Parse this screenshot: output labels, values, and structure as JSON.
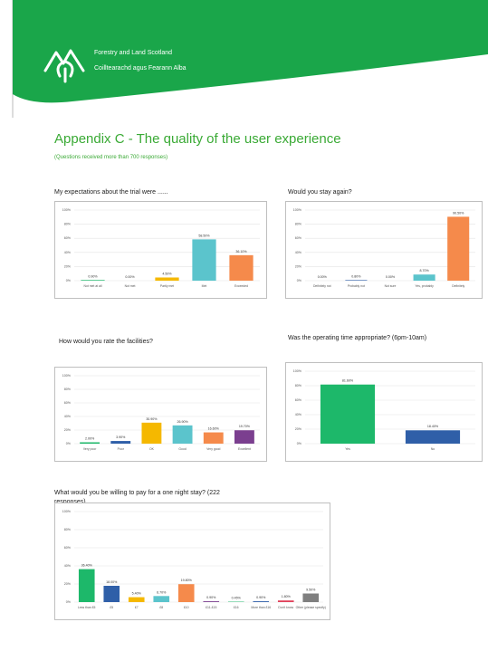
{
  "header": {
    "org_en": "Forestry and Land Scotland",
    "org_gd": "Coilltearachd agus Fearann Alba"
  },
  "title": "Appendix C - The quality of the user experience",
  "subtitle": "(Questions received more than 700 responses)",
  "chart_data": [
    {
      "type": "bar",
      "title": "My expectations about the trial were ......",
      "categories": [
        "Not met at all",
        "Not met",
        "Partly met",
        "Met",
        "Exceeded"
      ],
      "values": [
        0.9,
        0,
        4.5,
        58.5,
        36.1
      ],
      "value_labels": [
        "0.90%",
        "0.00%",
        "4.50%",
        "58.50%",
        "36.10%"
      ],
      "colors": [
        "#1db86a",
        "#2f5fa8",
        "#f5b800",
        "#5bc4cc",
        "#f58a4b"
      ],
      "ylim": [
        0,
        100
      ],
      "yticks": [
        {
          "value": 0,
          "label": "0%"
        },
        {
          "value": 20,
          "label": "20%"
        },
        {
          "value": 40,
          "label": "40%"
        },
        {
          "value": 60,
          "label": "60%"
        },
        {
          "value": 80,
          "label": "80%"
        },
        {
          "value": 100,
          "label": "100%"
        }
      ],
      "grid": true
    },
    {
      "type": "bar",
      "title": "Would you stay again?",
      "categories": [
        "Definitely not",
        "Probably not",
        "Not sure",
        "Yes, probably",
        "Definitely"
      ],
      "values": [
        0,
        0.8,
        0,
        8.7,
        90.5
      ],
      "value_labels": [
        "0.00%",
        "0.80%",
        "0.00%",
        "8.70%",
        "90.50%"
      ],
      "colors": [
        "#1db86a",
        "#2f5fa8",
        "#f5b800",
        "#5bc4cc",
        "#f58a4b"
      ],
      "ylim": [
        0,
        100
      ],
      "yticks": [
        {
          "value": 0,
          "label": "0%"
        },
        {
          "value": 20,
          "label": "20%"
        },
        {
          "value": 40,
          "label": "40%"
        },
        {
          "value": 60,
          "label": "60%"
        },
        {
          "value": 80,
          "label": "80%"
        },
        {
          "value": 100,
          "label": "100%"
        }
      ],
      "grid": true
    },
    {
      "type": "bar",
      "title": "How would you rate the facilities?",
      "categories": [
        "Very poor",
        "Poor",
        "OK",
        "Good",
        "Very good",
        "Excellent"
      ],
      "values": [
        2,
        3.9,
        30.9,
        26.9,
        16.6,
        19.7
      ],
      "value_labels": [
        "2.00%",
        "3.90%",
        "30.90%",
        "26.90%",
        "16.60%",
        "19.70%"
      ],
      "colors": [
        "#1db86a",
        "#2f5fa8",
        "#f5b800",
        "#5bc4cc",
        "#f58a4b",
        "#7b3f8f"
      ],
      "ylim": [
        0,
        100
      ],
      "yticks": [
        {
          "value": 0,
          "label": "0%"
        },
        {
          "value": 20,
          "label": "20%"
        },
        {
          "value": 40,
          "label": "40%"
        },
        {
          "value": 60,
          "label": "60%"
        },
        {
          "value": 80,
          "label": "80%"
        },
        {
          "value": 100,
          "label": "100%"
        }
      ],
      "grid": true
    },
    {
      "type": "bar",
      "title": "Was the operating time appropriate? (6pm-10am)",
      "categories": [
        "Yes",
        "No"
      ],
      "values": [
        81.6,
        18.4
      ],
      "value_labels": [
        "81.60%",
        "18.40%"
      ],
      "colors": [
        "#1db86a",
        "#2f5fa8"
      ],
      "ylim": [
        0,
        100
      ],
      "yticks": [
        {
          "value": 0,
          "label": "0%"
        },
        {
          "value": 20,
          "label": "20%"
        },
        {
          "value": 40,
          "label": "40%"
        },
        {
          "value": 60,
          "label": "60%"
        },
        {
          "value": 80,
          "label": "80%"
        },
        {
          "value": 100,
          "label": "100%"
        }
      ],
      "grid": true
    },
    {
      "type": "bar",
      "title": "What would you be willing to pay for a one night stay? (222 responses)",
      "categories": [
        "Less than £5",
        "£5",
        "£7",
        "£8",
        "£10",
        "£11-£15",
        "£16",
        "More than £16",
        "Don't know",
        "Other (please specify)"
      ],
      "values": [
        36.4,
        18,
        5.4,
        6.7,
        19.8,
        0.9,
        0.45,
        0.9,
        1.8,
        9.5
      ],
      "value_labels": [
        "36.40%",
        "18.00%",
        "5.40%",
        "6.70%",
        "19.80%",
        "0.90%",
        "0.45%",
        "0.90%",
        "1.80%",
        "9.50%"
      ],
      "colors": [
        "#1db86a",
        "#2f5fa8",
        "#f5b800",
        "#5bc4cc",
        "#f58a4b",
        "#7b3f8f",
        "#1db86a",
        "#2f5fa8",
        "#e0415a",
        "#7f7f7f"
      ],
      "ylim": [
        0,
        100
      ],
      "yticks": [
        {
          "value": 0,
          "label": "0%"
        },
        {
          "value": 20,
          "label": "20%"
        },
        {
          "value": 40,
          "label": "40%"
        },
        {
          "value": 60,
          "label": "60%"
        },
        {
          "value": 80,
          "label": "80%"
        },
        {
          "value": 100,
          "label": "100%"
        }
      ],
      "grid": true
    }
  ]
}
